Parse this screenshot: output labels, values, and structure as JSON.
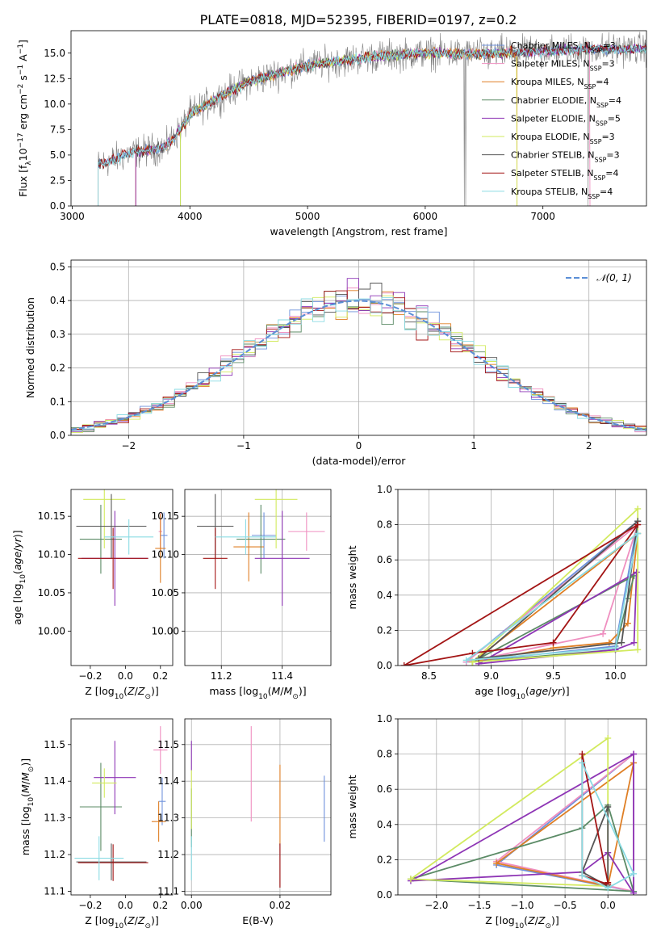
{
  "title": "PLATE=0818, MJD=52395, FIBERID=0197, z=0.2",
  "series_styles": [
    {
      "label": "Chabrier MILES, N<sub>SSP</sub>=3",
      "color": "#6d90db"
    },
    {
      "label": "Salpeter MILES, N<sub>SSP</sub>=3",
      "color": "#ef8fc0"
    },
    {
      "label": "Kroupa MILES, N<sub>SSP</sub>=4",
      "color": "#df7f25"
    },
    {
      "label": "Chabrier ELODIE, N<sub>SSP</sub>=4",
      "color": "#5b8b66"
    },
    {
      "label": "Salpeter ELODIE, N<sub>SSP</sub>=5",
      "color": "#8e35b5"
    },
    {
      "label": "Kroupa ELODIE, N<sub>SSP</sub>=3",
      "color": "#d2ea5e"
    },
    {
      "label": "Chabrier STELIB, N<sub>SSP</sub>=3",
      "color": "#555555"
    },
    {
      "label": "Salpeter STELIB, N<sub>SSP</sub>=4",
      "color": "#a31515"
    },
    {
      "label": "Kroupa STELIB, N<sub>SSP</sub>=4",
      "color": "#8adbe3"
    }
  ],
  "chart_data": [
    {
      "id": "spectrum",
      "type": "line",
      "title": "PLATE=0818, MJD=52395, FIBERID=0197, z=0.2",
      "xlabel": "wavelength [Angstrom, rest frame]",
      "ylabel": "Flux [f<sub>λ</sub>10<sup>−17</sup> erg cm<sup>−2</sup> s<sup>−1</sup> A<sup>−1</sup>]",
      "xlim": [
        2990,
        7880
      ],
      "ylim": [
        0,
        17.2
      ],
      "xticks": [
        3000,
        4000,
        5000,
        6000,
        7000
      ],
      "yticks": [
        0.0,
        2.5,
        5.0,
        7.5,
        10.0,
        12.5,
        15.0
      ],
      "yticklabels": [
        "0.0",
        "2.5",
        "5.0",
        "7.5",
        "10.0",
        "12.5",
        "15.0"
      ],
      "continuum_anchors": [
        [
          3220,
          4.0
        ],
        [
          3500,
          5.2
        ],
        [
          3800,
          5.8
        ],
        [
          3950,
          8.0
        ],
        [
          4000,
          9.0
        ],
        [
          4300,
          11.0
        ],
        [
          4500,
          12.2
        ],
        [
          5000,
          13.8
        ],
        [
          5500,
          14.6
        ],
        [
          6000,
          15.0
        ],
        [
          6500,
          14.9
        ],
        [
          7000,
          15.2
        ],
        [
          7400,
          15.4
        ],
        [
          7880,
          15.4
        ]
      ],
      "model_ranges": [
        [
          3220,
          7880
        ],
        [
          3540,
          7400
        ],
        [
          3540,
          6780
        ],
        [
          3920,
          7880
        ],
        [
          3540,
          7880
        ],
        [
          3920,
          6780
        ],
        [
          3220,
          7880
        ],
        [
          3220,
          7880
        ],
        [
          3220,
          7880
        ]
      ],
      "legend": [
        "Chabrier MILES, N<sub>SSP</sub>=3",
        "Salpeter MILES, N<sub>SSP</sub>=3",
        "Kroupa MILES, N<sub>SSP</sub>=4",
        "Chabrier ELODIE, N<sub>SSP</sub>=4",
        "Salpeter ELODIE, N<sub>SSP</sub>=5",
        "Kroupa ELODIE, N<sub>SSP</sub>=3",
        "Chabrier STELIB, N<sub>SSP</sub>=3",
        "Salpeter STELIB, N<sub>SSP</sub>=4",
        "Kroupa STELIB, N<sub>SSP</sub>=4"
      ],
      "legend_position": "upper right"
    },
    {
      "id": "residuals",
      "type": "area",
      "xlabel": "(data-model)/error",
      "ylabel": "Normed distribution",
      "xlim": [
        -2.5,
        2.5
      ],
      "ylim": [
        0,
        0.52
      ],
      "xticks": [
        -2,
        -1,
        0,
        1,
        2
      ],
      "xticklabels": [
        "−2",
        "−1",
        "0",
        "1",
        "2"
      ],
      "yticks": [
        0.0,
        0.1,
        0.2,
        0.3,
        0.4,
        0.5
      ],
      "yticklabels": [
        "0.0",
        "0.1",
        "0.2",
        "0.3",
        "0.4",
        "0.5"
      ],
      "grid": true,
      "bin_width": 0.1,
      "reference": {
        "name": "𝒩(0, 1)",
        "mu": 0,
        "sigma": 1
      },
      "legend_position": "upper right"
    },
    {
      "id": "age-vs-Z",
      "type": "scatter",
      "xlabel": "Z [log<sub>10</sub>(<i>Z</i>/<i>Z</i><sub>⊙</sub>)]",
      "ylabel": "age  [log<sub>10</sub>(<i>age</i>/<i>yr</i>)]",
      "xlim": [
        -0.31,
        0.27
      ],
      "ylim": [
        9.955,
        10.185
      ],
      "xticks": [
        -0.2,
        0.0,
        0.2
      ],
      "xticklabels": [
        "−0.2",
        "0.0",
        "0.2"
      ],
      "yticks": [
        10.0,
        10.05,
        10.1,
        10.15
      ],
      "yticklabels": [
        "10.00",
        "10.05",
        "10.10",
        "10.15"
      ],
      "points": [
        {
          "s": 0,
          "x": 0.22,
          "y": 10.125,
          "xe": 0.02,
          "ye": 0.03
        },
        {
          "s": 1,
          "x": 0.2,
          "y": 10.13,
          "xe": 0.01,
          "ye": 0.025
        },
        {
          "s": 2,
          "x": 0.2,
          "y": 10.108,
          "xe": 0.03,
          "ye": 0.045
        },
        {
          "s": 3,
          "x": -0.14,
          "y": 10.12,
          "xe": 0.12,
          "ye": 0.045
        },
        {
          "s": 4,
          "x": -0.06,
          "y": 10.095,
          "xe": 0.19,
          "ye": 0.062
        },
        {
          "s": 5,
          "x": -0.12,
          "y": 10.172,
          "xe": 0.12,
          "ye": 0.064
        },
        {
          "s": 6,
          "x": -0.08,
          "y": 10.137,
          "xe": 0.2,
          "ye": 0.042
        },
        {
          "s": 7,
          "x": -0.07,
          "y": 10.095,
          "xe": 0.2,
          "ye": 0.04
        },
        {
          "s": 8,
          "x": 0.02,
          "y": 10.123,
          "xe": 0.14,
          "ye": 0.023
        }
      ]
    },
    {
      "id": "age-vs-mass",
      "type": "scatter",
      "xlabel": "mass [log<sub>10</sub>(<i>M</i>/<i>M</i><sub>⊙</sub>)]",
      "ylabel": "",
      "xlim": [
        11.08,
        11.56
      ],
      "ylim": [
        9.955,
        10.185
      ],
      "xticks": [
        11.2,
        11.4
      ],
      "xticklabels": [
        "11.2",
        "11.4"
      ],
      "yticks": [
        10.0,
        10.05,
        10.1,
        10.15
      ],
      "yticklabels": [
        "10.00",
        "10.05",
        "10.10",
        "10.15"
      ],
      "grid": true,
      "points": [
        {
          "s": 0,
          "x": 11.34,
          "y": 10.125,
          "xe": 0.04,
          "ye": 0.03
        },
        {
          "s": 1,
          "x": 11.48,
          "y": 10.13,
          "xe": 0.06,
          "ye": 0.025
        },
        {
          "s": 2,
          "x": 11.29,
          "y": 10.11,
          "xe": 0.05,
          "ye": 0.045
        },
        {
          "s": 3,
          "x": 11.33,
          "y": 10.12,
          "xe": 0.08,
          "ye": 0.045
        },
        {
          "s": 4,
          "x": 11.4,
          "y": 10.095,
          "xe": 0.09,
          "ye": 0.062
        },
        {
          "s": 5,
          "x": 11.38,
          "y": 10.172,
          "xe": 0.07,
          "ye": 0.064
        },
        {
          "s": 6,
          "x": 11.18,
          "y": 10.137,
          "xe": 0.06,
          "ye": 0.042
        },
        {
          "s": 7,
          "x": 11.18,
          "y": 10.095,
          "xe": 0.04,
          "ye": 0.04
        },
        {
          "s": 8,
          "x": 11.28,
          "y": 10.123,
          "xe": 0.1,
          "ye": 0.023
        }
      ]
    },
    {
      "id": "massweight-vs-age",
      "type": "line",
      "xlabel": "age  [log<sub>10</sub>(<i>age</i>/<i>yr</i>)]",
      "ylabel": "mass weight",
      "xlim": [
        8.25,
        10.25
      ],
      "ylim": [
        0,
        1.0
      ],
      "xticks": [
        8.5,
        9.0,
        9.5,
        10.0
      ],
      "xticklabels": [
        "8.5",
        "9.0",
        "9.5",
        "10.0"
      ],
      "yticks": [
        0.0,
        0.2,
        0.4,
        0.6,
        0.8,
        1.0
      ],
      "yticklabels": [
        "0.0",
        "0.2",
        "0.4",
        "0.6",
        "0.8",
        "1.0"
      ],
      "grid": true,
      "series": [
        {
          "s": 0,
          "x": [
            8.8,
            10.0,
            10.18
          ],
          "y": [
            0.02,
            0.11,
            0.82
          ]
        },
        {
          "s": 1,
          "x": [
            8.8,
            9.9,
            10.18
          ],
          "y": [
            0.02,
            0.18,
            0.8
          ]
        },
        {
          "s": 2,
          "x": [
            8.85,
            9.5,
            9.95,
            10.1,
            10.18
          ],
          "y": [
            0.02,
            0.1,
            0.13,
            0.24,
            0.75
          ]
        },
        {
          "s": 3,
          "x": [
            8.85,
            10.0,
            10.1,
            10.15
          ],
          "y": [
            0.02,
            0.09,
            0.38,
            0.51
          ]
        },
        {
          "s": 4,
          "x": [
            8.9,
            10.0,
            10.15,
            10.17
          ],
          "y": [
            0.01,
            0.09,
            0.13,
            0.53
          ]
        },
        {
          "s": 5,
          "x": [
            8.85,
            10.18,
            10.18
          ],
          "y": [
            0.02,
            0.89,
            0.09
          ]
        },
        {
          "s": 6,
          "x": [
            8.9,
            10.05,
            10.18
          ],
          "y": [
            0.04,
            0.13,
            0.82
          ]
        },
        {
          "s": 7,
          "x": [
            8.3,
            8.85,
            9.5,
            10.18
          ],
          "y": [
            0.0,
            0.07,
            0.13,
            0.8
          ]
        },
        {
          "s": 8,
          "x": [
            8.8,
            10.0,
            10.18
          ],
          "y": [
            0.03,
            0.1,
            0.75
          ]
        }
      ]
    },
    {
      "id": "mass-vs-Z",
      "type": "scatter",
      "xlabel": "Z [log<sub>10</sub>(<i>Z</i>/<i>Z</i><sub>⊙</sub>)]",
      "ylabel": "mass [log<sub>10</sub>(<i>M</i>/<i>M</i><sub>⊙</sub>)]",
      "xlim": [
        -0.31,
        0.27
      ],
      "ylim": [
        11.09,
        11.57
      ],
      "xticks": [
        -0.2,
        0.0,
        0.2
      ],
      "xticklabels": [
        "−0.2",
        "0.0",
        "0.2"
      ],
      "yticks": [
        11.1,
        11.2,
        11.3,
        11.4,
        11.5
      ],
      "yticklabels": [
        "11.1",
        "11.2",
        "11.3",
        "11.4",
        "11.5"
      ],
      "points": [
        {
          "s": 0,
          "x": 0.21,
          "y": 11.345,
          "xe": 0.02,
          "ye": 0.065
        },
        {
          "s": 1,
          "x": 0.2,
          "y": 11.485,
          "xe": 0.04,
          "ye": 0.065
        },
        {
          "s": 2,
          "x": 0.19,
          "y": 11.29,
          "xe": 0.04,
          "ye": 0.055
        },
        {
          "s": 3,
          "x": -0.14,
          "y": 11.33,
          "xe": 0.12,
          "ye": 0.12
        },
        {
          "s": 4,
          "x": -0.06,
          "y": 11.41,
          "xe": 0.12,
          "ye": 0.1
        },
        {
          "s": 5,
          "x": -0.12,
          "y": 11.395,
          "xe": 0.07,
          "ye": 0.04
        },
        {
          "s": 6,
          "x": -0.08,
          "y": 11.18,
          "xe": 0.2,
          "ye": 0.05
        },
        {
          "s": 7,
          "x": -0.07,
          "y": 11.178,
          "xe": 0.2,
          "ye": 0.05
        },
        {
          "s": 8,
          "x": -0.15,
          "y": 11.19,
          "xe": 0.14,
          "ye": 0.06
        }
      ]
    },
    {
      "id": "mass-vs-ebv",
      "type": "scatter",
      "xlabel": "E(B-V)",
      "ylabel": "",
      "xlim": [
        -0.0015,
        0.0315
      ],
      "ylim": [
        11.09,
        11.57
      ],
      "xticks": [
        0.0,
        0.02
      ],
      "xticklabels": [
        "0.00",
        "0.02"
      ],
      "yticks": [
        11.1,
        11.2,
        11.3,
        11.4,
        11.5
      ],
      "yticklabels": [
        "11.1",
        "11.2",
        "11.3",
        "11.4",
        "11.5"
      ],
      "grid": true,
      "points": [
        {
          "s": 0,
          "x": 0.03,
          "y": 11.325,
          "xe": 0,
          "ye": 0.09
        },
        {
          "s": 1,
          "x": 0.0135,
          "y": 11.42,
          "xe": 0,
          "ye": 0.13
        },
        {
          "s": 2,
          "x": 0.02,
          "y": 11.335,
          "xe": 0,
          "ye": 0.11
        },
        {
          "s": 3,
          "x": 0.0,
          "y": 11.3,
          "xe": 0,
          "ye": 0.08
        },
        {
          "s": 4,
          "x": 0.0,
          "y": 11.47,
          "xe": 0,
          "ye": 0.04
        },
        {
          "s": 5,
          "x": 0.0,
          "y": 11.35,
          "xe": 0,
          "ye": 0.08
        },
        {
          "s": 6,
          "x": 0.02,
          "y": 11.17,
          "xe": 0,
          "ye": 0.06
        },
        {
          "s": 7,
          "x": 0.02,
          "y": 11.17,
          "xe": 0,
          "ye": 0.06
        },
        {
          "s": 8,
          "x": 0.0,
          "y": 11.19,
          "xe": 0,
          "ye": 0.06
        }
      ]
    },
    {
      "id": "massweight-vs-Z",
      "type": "line",
      "xlabel": "Z [log<sub>10</sub>(<i>Z</i>/<i>Z</i><sub>⊙</sub>)]",
      "ylabel": "mass weight",
      "xlim": [
        -2.45,
        0.45
      ],
      "ylim": [
        0,
        1.0
      ],
      "xticks": [
        -2.0,
        -1.5,
        -1.0,
        -0.5,
        0.0
      ],
      "xticklabels": [
        "−2.0",
        "−1.5",
        "−1.0",
        "−0.5",
        "0.0"
      ],
      "yticks": [
        0.0,
        0.2,
        0.4,
        0.6,
        0.8,
        1.0
      ],
      "yticklabels": [
        "0.0",
        "0.2",
        "0.4",
        "0.6",
        "0.8",
        "1.0"
      ],
      "grid": true,
      "series": [
        {
          "s": 0,
          "x": [
            -1.3,
            0.3,
            0.3
          ],
          "y": [
            0.17,
            0.8,
            0.02
          ]
        },
        {
          "s": 1,
          "x": [
            -1.3,
            0.3,
            0.3
          ],
          "y": [
            0.19,
            0.8,
            0.02
          ]
        },
        {
          "s": 2,
          "x": [
            -1.3,
            0.0,
            0.3
          ],
          "y": [
            0.18,
            0.05,
            0.75
          ]
        },
        {
          "s": 3,
          "x": [
            -2.3,
            -0.3,
            0.0,
            0.3
          ],
          "y": [
            0.09,
            0.38,
            0.51,
            0.02
          ]
        },
        {
          "s": 4,
          "x": [
            -2.3,
            -0.3,
            0.0,
            0.3,
            0.3
          ],
          "y": [
            0.08,
            0.13,
            0.24,
            0.01,
            0.8
          ]
        },
        {
          "s": 5,
          "x": [
            -2.3,
            0.0,
            0.0
          ],
          "y": [
            0.09,
            0.89,
            0.05
          ]
        },
        {
          "s": 6,
          "x": [
            -0.3,
            0.0,
            0.0
          ],
          "y": [
            0.13,
            0.05,
            0.5
          ]
        },
        {
          "s": 7,
          "x": [
            -0.3,
            -0.3,
            0.0,
            0.0
          ],
          "y": [
            0.8,
            0.11,
            0.06,
            0.07
          ]
        },
        {
          "s": 8,
          "x": [
            -0.3,
            -0.3,
            0.0,
            0.3
          ],
          "y": [
            0.75,
            0.11,
            0.04,
            0.12
          ]
        }
      ]
    }
  ]
}
